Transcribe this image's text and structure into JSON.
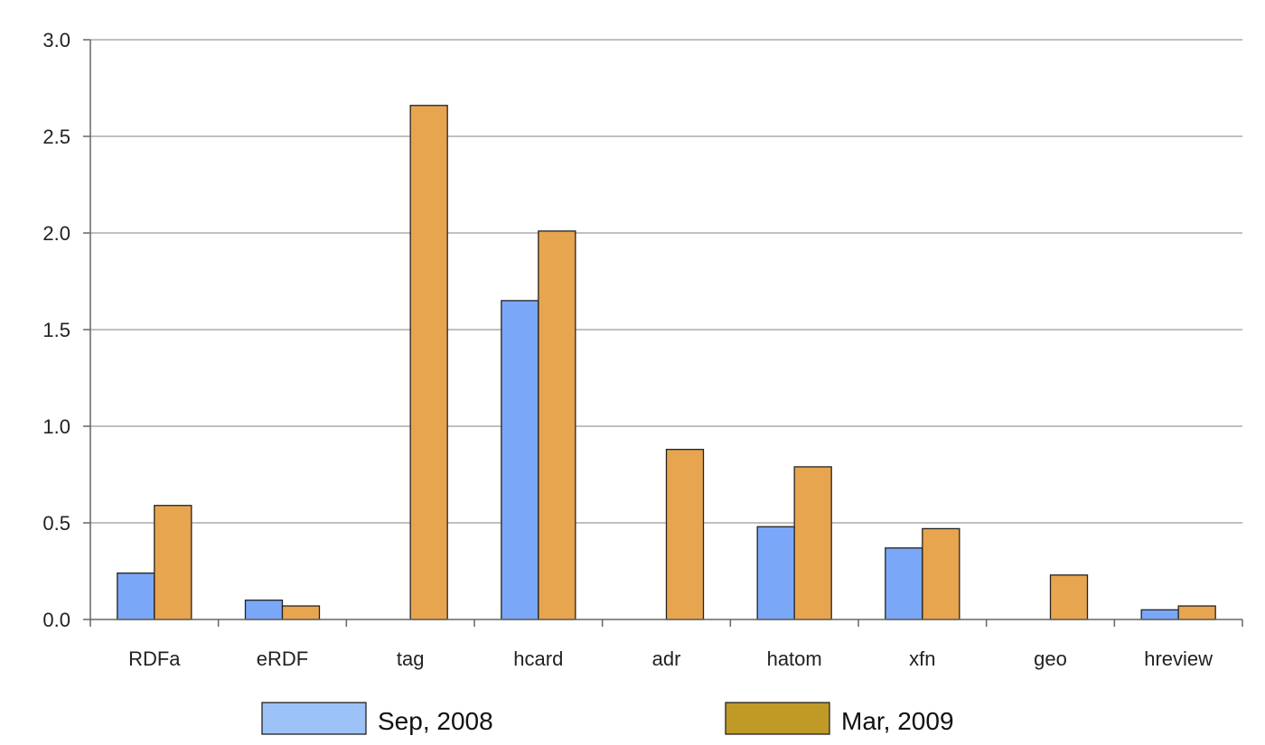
{
  "chart_data": {
    "type": "bar",
    "categories": [
      "RDFa",
      "eRDF",
      "tag",
      "hcard",
      "adr",
      "hatom",
      "xfn",
      "geo",
      "hreview"
    ],
    "series": [
      {
        "name": "Sep, 2008",
        "values": [
          0.24,
          0.1,
          0.0,
          1.65,
          0.0,
          0.48,
          0.37,
          0.0,
          0.05
        ],
        "color": "#7aa7f7",
        "legend_swatch_color": "#9cc2f7"
      },
      {
        "name": "Mar, 2009",
        "values": [
          0.59,
          0.07,
          2.66,
          2.01,
          0.88,
          0.79,
          0.47,
          0.23,
          0.07
        ],
        "color": "#e8a54f",
        "legend_swatch_color": "#c09a26"
      }
    ],
    "y_ticks": [
      "0.0",
      "0.5",
      "1.0",
      "1.5",
      "2.0",
      "2.5",
      "3.0"
    ],
    "ylim": [
      0,
      3.0
    ],
    "title": "",
    "xlabel": "",
    "ylabel": "",
    "grid": true,
    "legend_position": "bottom"
  }
}
